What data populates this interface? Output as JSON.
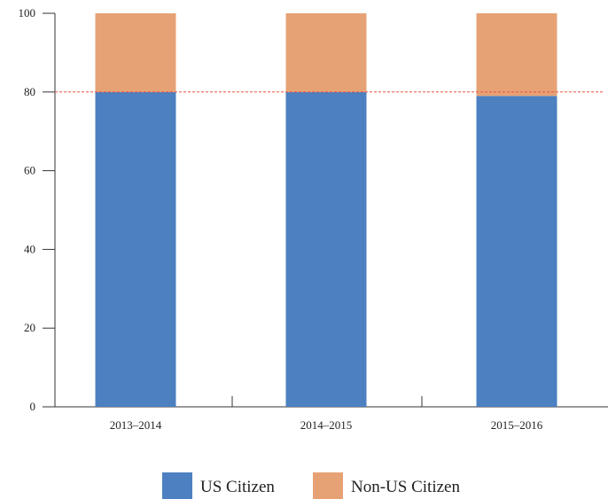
{
  "chart_data": {
    "type": "bar",
    "stacked": true,
    "categories": [
      "2013–2014",
      "2014–2015",
      "2015–2016"
    ],
    "series": [
      {
        "name": "US Citizen",
        "values": [
          80,
          80,
          79
        ],
        "color": "#4c80c0"
      },
      {
        "name": "Non-US Citizen",
        "values": [
          20,
          20,
          21
        ],
        "color": "#e6a275"
      }
    ],
    "ylim": [
      0,
      100
    ],
    "yticks": [
      0,
      20,
      40,
      60,
      80,
      100
    ],
    "reference_line": {
      "y": 80,
      "color": "#e8553f",
      "style": "dashed"
    },
    "title": "",
    "xlabel": "",
    "ylabel": "",
    "grid": false,
    "legend": "bottom-center"
  }
}
